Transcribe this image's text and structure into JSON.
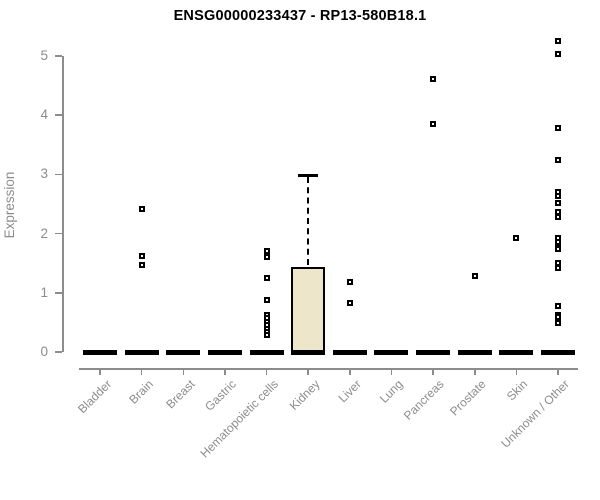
{
  "chart_data": {
    "type": "boxplot",
    "title": "ENSG00000233437 - RP13-580B18.1",
    "ylabel": "Expression",
    "xlabel": "",
    "ylim": [
      0,
      5.3
    ],
    "yticks": [
      0,
      1,
      2,
      3,
      4,
      5
    ],
    "grid": false,
    "legend": "none",
    "categories": [
      "Bladder",
      "Brain",
      "Breast",
      "Gastric",
      "Hematopoietic cells",
      "Kidney",
      "Liver",
      "Lung",
      "Pancreas",
      "Prostate",
      "Skin",
      "Unknown / Other"
    ],
    "boxes": [
      {
        "category": "Bladder",
        "median": 0,
        "q1": 0,
        "q3": 0,
        "whisker_low": 0,
        "whisker_high": 0,
        "outliers": []
      },
      {
        "category": "Brain",
        "median": 0,
        "q1": 0,
        "q3": 0,
        "whisker_low": 0,
        "whisker_high": 0,
        "outliers": [
          2.41,
          1.62,
          1.47
        ]
      },
      {
        "category": "Breast",
        "median": 0,
        "q1": 0,
        "q3": 0,
        "whisker_low": 0,
        "whisker_high": 0,
        "outliers": []
      },
      {
        "category": "Gastric",
        "median": 0,
        "q1": 0,
        "q3": 0,
        "whisker_low": 0,
        "whisker_high": 0,
        "outliers": []
      },
      {
        "category": "Hematopoietic cells",
        "median": 0,
        "q1": 0,
        "q3": 0,
        "whisker_low": 0,
        "whisker_high": 0,
        "outliers": [
          1.71,
          1.6,
          1.25,
          0.87,
          0.63,
          0.57,
          0.51,
          0.45,
          0.39,
          0.33,
          0.28
        ]
      },
      {
        "category": "Kidney",
        "median": 0,
        "q1": 0,
        "q3": 1.43,
        "whisker_low": 0,
        "whisker_high": 3.0,
        "outliers": []
      },
      {
        "category": "Liver",
        "median": 0,
        "q1": 0,
        "q3": 0,
        "whisker_low": 0,
        "whisker_high": 0,
        "outliers": [
          1.19,
          0.82
        ]
      },
      {
        "category": "Lung",
        "median": 0,
        "q1": 0,
        "q3": 0,
        "whisker_low": 0,
        "whisker_high": 0,
        "outliers": []
      },
      {
        "category": "Pancreas",
        "median": 0,
        "q1": 0,
        "q3": 0,
        "whisker_low": 0,
        "whisker_high": 0,
        "outliers": [
          4.61,
          3.85
        ]
      },
      {
        "category": "Prostate",
        "median": 0,
        "q1": 0,
        "q3": 0,
        "whisker_low": 0,
        "whisker_high": 0,
        "outliers": [
          1.29
        ]
      },
      {
        "category": "Skin",
        "median": 0,
        "q1": 0,
        "q3": 0,
        "whisker_low": 0,
        "whisker_high": 0,
        "outliers": [
          1.92
        ]
      },
      {
        "category": "Unknown / Other",
        "median": 0,
        "q1": 0,
        "q3": 0,
        "whisker_low": 0,
        "whisker_high": 0,
        "outliers": [
          5.26,
          5.03,
          3.79,
          3.24,
          2.7,
          2.63,
          2.51,
          2.36,
          2.28,
          1.93,
          1.85,
          1.78,
          1.74,
          1.51,
          1.42,
          0.78,
          0.63,
          0.59,
          0.49
        ]
      }
    ],
    "colors": {
      "box_fill": "#ede6ca",
      "box_border": "#000000",
      "point": "#000000",
      "axis": "#8c8c8c",
      "title": "#000000",
      "background": "#ffffff"
    }
  }
}
